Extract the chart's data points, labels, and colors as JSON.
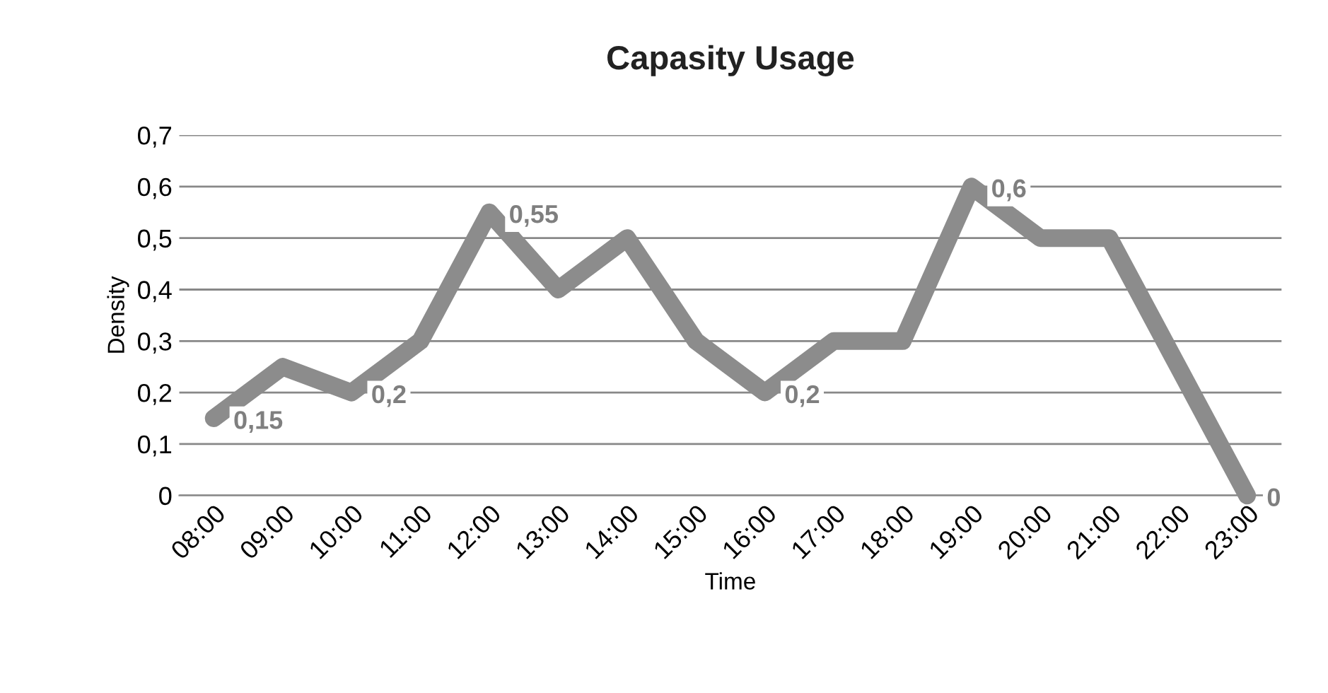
{
  "chart_data": {
    "type": "line",
    "title": "Capasity Usage",
    "xlabel": "Time",
    "ylabel": "Density",
    "categories": [
      "08:00",
      "09:00",
      "10:00",
      "11:00",
      "12:00",
      "13:00",
      "14:00",
      "15:00",
      "16:00",
      "17:00",
      "18:00",
      "19:00",
      "20:00",
      "21:00",
      "22:00",
      "23:00"
    ],
    "series": [
      {
        "color": "#8c8c8c",
        "values": [
          0.15,
          0.25,
          0.2,
          0.3,
          0.55,
          0.4,
          0.5,
          0.3,
          0.2,
          0.3,
          0.3,
          0.6,
          0.5,
          0.5,
          0.25,
          0
        ],
        "value_labels": [
          "0,15",
          null,
          "0,2",
          null,
          "0,55",
          null,
          null,
          null,
          "0,2",
          null,
          null,
          "0,6",
          null,
          null,
          null,
          "0"
        ]
      }
    ],
    "ylim": [
      0,
      0.7
    ],
    "yticks": [
      0,
      {
        "value": 0.1,
        "label": "0,1"
      },
      {
        "value": 0.2,
        "label": "0,2"
      },
      {
        "value": 0.3,
        "label": "0,3"
      },
      {
        "value": 0.4,
        "label": "0,4"
      },
      {
        "value": 0.5,
        "label": "0,5"
      },
      {
        "value": 0.6,
        "label": "0,6"
      },
      {
        "value": 0.7,
        "label": "0,7"
      }
    ],
    "grid": "y",
    "legend": false,
    "line_style": "solid"
  }
}
